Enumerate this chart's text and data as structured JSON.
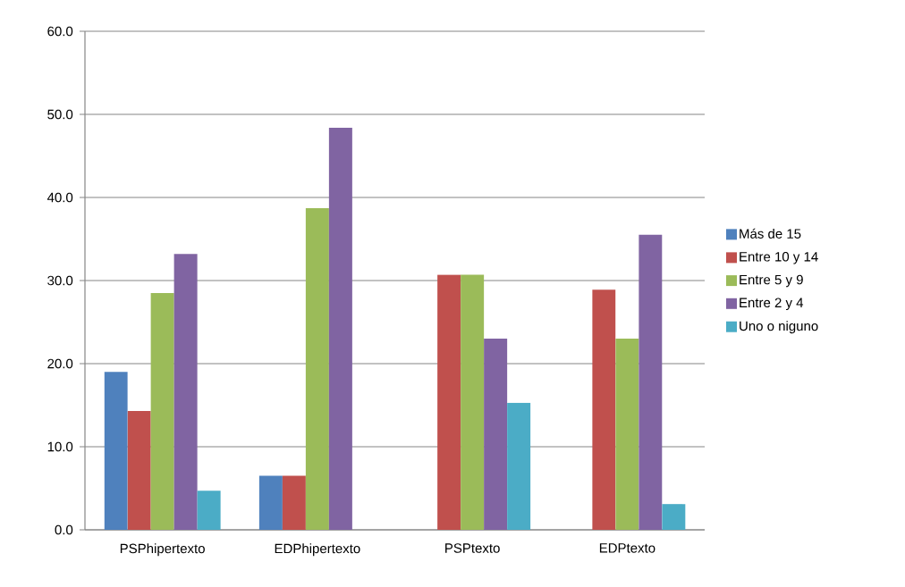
{
  "chart_data": {
    "type": "bar",
    "categories": [
      "PSPhipertexto",
      "EDPhipertexto",
      "PSPtexto",
      "EDPtexto"
    ],
    "series": [
      {
        "name": "Más de 15",
        "color": "#4f81bd",
        "values": [
          19.0,
          6.5,
          null,
          null
        ]
      },
      {
        "name": "Entre 10 y 14",
        "color": "#c0504d",
        "values": [
          14.3,
          6.5,
          30.7,
          28.9
        ]
      },
      {
        "name": "Entre 5 y 9",
        "color": "#9bbb59",
        "values": [
          28.5,
          38.7,
          30.7,
          23.0
        ]
      },
      {
        "name": "Entre 2 y 4",
        "color": "#8064a2",
        "values": [
          33.2,
          48.4,
          23.0,
          35.5
        ]
      },
      {
        "name": "Uno o niguno",
        "color": "#4bacc6",
        "values": [
          4.7,
          null,
          15.3,
          3.1
        ]
      }
    ],
    "ylim": [
      0,
      60
    ],
    "yticks": [
      {
        "value": 0,
        "label": "0.0"
      },
      {
        "value": 10,
        "label": "10.0"
      },
      {
        "value": 20,
        "label": "20.0"
      },
      {
        "value": 30,
        "label": "30.0"
      },
      {
        "value": 40,
        "label": "40.0"
      },
      {
        "value": 50,
        "label": "50.0"
      },
      {
        "value": 60,
        "label": "60.0"
      }
    ],
    "grid": "y",
    "legend": "right"
  }
}
